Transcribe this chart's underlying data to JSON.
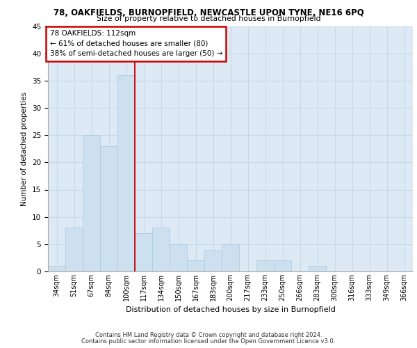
{
  "title": "78, OAKFIELDS, BURNOPFIELD, NEWCASTLE UPON TYNE, NE16 6PQ",
  "subtitle": "Size of property relative to detached houses in Burnopfield",
  "xlabel": "Distribution of detached houses by size in Burnopfield",
  "ylabel": "Number of detached properties",
  "categories": [
    "34sqm",
    "51sqm",
    "67sqm",
    "84sqm",
    "100sqm",
    "117sqm",
    "134sqm",
    "150sqm",
    "167sqm",
    "183sqm",
    "200sqm",
    "217sqm",
    "233sqm",
    "250sqm",
    "266sqm",
    "283sqm",
    "300sqm",
    "316sqm",
    "333sqm",
    "349sqm",
    "366sqm"
  ],
  "values": [
    1,
    8,
    25,
    23,
    36,
    7,
    8,
    5,
    2,
    4,
    5,
    0,
    2,
    2,
    0,
    1,
    0,
    0,
    0,
    0,
    0
  ],
  "bar_color": "#cce0f0",
  "bar_edge_color": "#a8c8e0",
  "vline_x_index": 4.5,
  "vline_color": "#cc0000",
  "annotation_text": "78 OAKFIELDS: 112sqm\n← 61% of detached houses are smaller (80)\n38% of semi-detached houses are larger (50) →",
  "annotation_box_color": "#ffffff",
  "annotation_box_edge_color": "#cc0000",
  "ylim": [
    0,
    45
  ],
  "yticks": [
    0,
    5,
    10,
    15,
    20,
    25,
    30,
    35,
    40,
    45
  ],
  "grid_color": "#c8d8e8",
  "background_color": "#ddeaf5",
  "footer_line1": "Contains HM Land Registry data © Crown copyright and database right 2024.",
  "footer_line2": "Contains public sector information licensed under the Open Government Licence v3.0."
}
